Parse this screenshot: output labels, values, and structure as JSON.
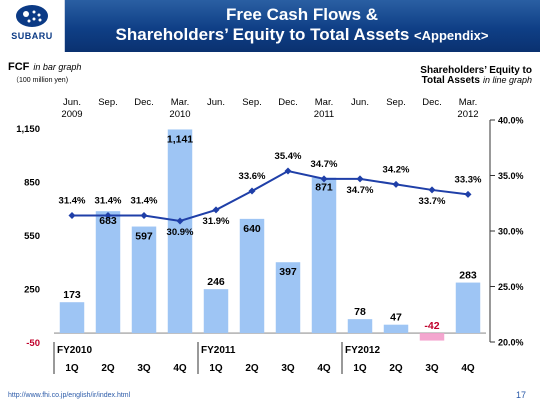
{
  "slide": {
    "title_line1": "Free Cash Flows &",
    "title_line2": "Shareholders’ Equity to Total Assets",
    "title_suffix": "<Appendix>",
    "logo_text": "SUBARU",
    "footer_url": "http://www.fhi.co.jp/english/ir/index.html",
    "page_number": "17"
  },
  "chart_data": {
    "type": "bar+line",
    "left_legend": {
      "label": "FCF",
      "note": "in bar graph",
      "unit": "（100 million yen)"
    },
    "right_legend": {
      "label_line1": "Shareholders’ Equity to",
      "label_line2": "Total Assets",
      "note": "in line graph"
    },
    "period_labels": [
      [
        "Jun.",
        "2009"
      ],
      [
        "Sep.",
        ""
      ],
      [
        "Dec.",
        ""
      ],
      [
        "Mar.",
        "2010"
      ],
      [
        "Jun.",
        ""
      ],
      [
        "Sep.",
        ""
      ],
      [
        "Dec.",
        ""
      ],
      [
        "Mar.",
        "2011"
      ],
      [
        "Jun.",
        ""
      ],
      [
        "Sep.",
        ""
      ],
      [
        "Dec.",
        ""
      ],
      [
        "Mar.",
        "2012"
      ]
    ],
    "quarters": [
      "1Q",
      "2Q",
      "3Q",
      "4Q",
      "1Q",
      "2Q",
      "3Q",
      "4Q",
      "1Q",
      "2Q",
      "3Q",
      "4Q"
    ],
    "fiscal_years": [
      {
        "label": "FY2010",
        "start_index": 0
      },
      {
        "label": "FY2011",
        "start_index": 4
      },
      {
        "label": "FY2012",
        "start_index": 8
      }
    ],
    "fcf": {
      "values": [
        173,
        683,
        597,
        1141,
        246,
        640,
        397,
        871,
        78,
        47,
        -42,
        283
      ],
      "labels": [
        "173",
        "683",
        "597",
        "1,141",
        "246",
        "640",
        "397",
        "871",
        "78",
        "47",
        "-42",
        "283"
      ],
      "color": "#9ec5f4",
      "negative_color": "#f4a6cf"
    },
    "equity_ratio": {
      "values": [
        31.4,
        31.4,
        31.4,
        30.9,
        31.9,
        33.6,
        35.4,
        34.7,
        34.7,
        34.2,
        33.7,
        33.3
      ],
      "labels": [
        "31.4%",
        "31.4%",
        "31.4%",
        "30.9%",
        "31.9%",
        "33.6%",
        "35.4%",
        "34.7%",
        "34.7%",
        "34.2%",
        "33.7%",
        "33.3%"
      ],
      "color": "#1f3fa8"
    },
    "left_axis": {
      "ticks": [
        -50,
        250,
        550,
        850,
        1150
      ],
      "tick_labels": [
        "-50",
        "250",
        "550",
        "850",
        "1,150"
      ],
      "range": [
        -50,
        1250
      ]
    },
    "right_axis": {
      "ticks": [
        20,
        25,
        30,
        35,
        40
      ],
      "tick_labels": [
        "20.0%",
        "25.0%",
        "30.0%",
        "35.0%",
        "40.0%"
      ],
      "range": [
        20,
        40
      ]
    },
    "label_colors": {
      "axis": "#c0002b",
      "text": "#000000"
    }
  }
}
